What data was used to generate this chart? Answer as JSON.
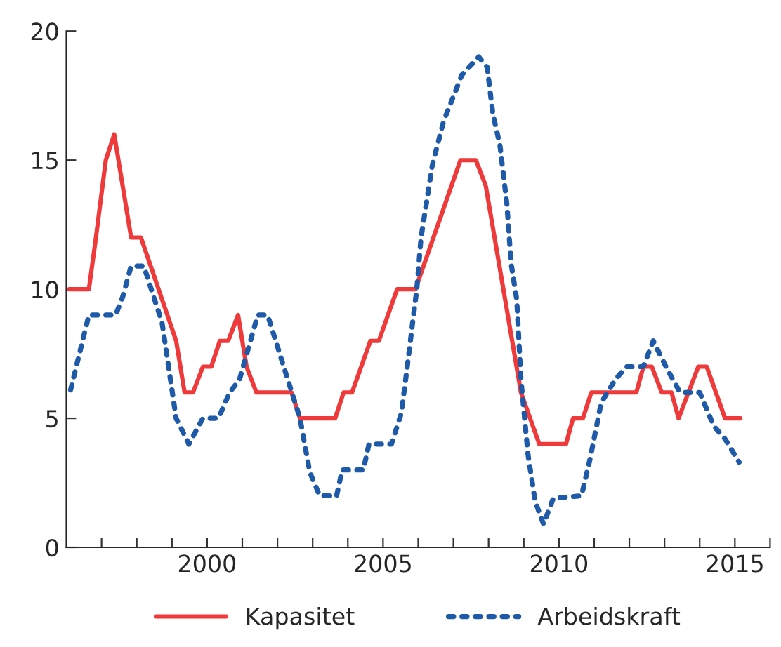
{
  "chart_data": {
    "type": "line",
    "series": [
      {
        "name": "Kapasitet",
        "color": "#ee3a3a",
        "line_style": "solid",
        "x": [
          1996.08,
          1996.64,
          1996.84,
          1997.12,
          1997.36,
          1997.84,
          1998.12,
          1999.12,
          1999.36,
          1999.6,
          1999.88,
          2000.12,
          2000.36,
          2000.6,
          2000.88,
          2001.12,
          2001.4,
          2002.4,
          2002.64,
          2003.64,
          2003.88,
          2004.12,
          2004.64,
          2004.88,
          2005.4,
          2005.92,
          2007.2,
          2007.64,
          2007.92,
          2008.92,
          2009.44,
          2010.2,
          2010.4,
          2010.68,
          2010.92,
          2012.2,
          2012.4,
          2012.64,
          2012.92,
          2013.2,
          2013.4,
          2013.96,
          2014.2,
          2014.72,
          2015.16
        ],
        "values": [
          10,
          10,
          12,
          15,
          16,
          12,
          12,
          8,
          6,
          6,
          7,
          7,
          8,
          8,
          9,
          7,
          6,
          6,
          5,
          5,
          6,
          6,
          8,
          8,
          10,
          10,
          15,
          15,
          14,
          6,
          4,
          4,
          5,
          5,
          6,
          6,
          7,
          7,
          6,
          6,
          5,
          7,
          7,
          5,
          5
        ]
      },
      {
        "name": "Arbeidskraft",
        "color": "#1f5aa8",
        "line_style": "dotted",
        "x": [
          1996.12,
          1996.64,
          1997.4,
          1997.6,
          1997.84,
          1998.2,
          1998.72,
          1999.12,
          1999.48,
          1999.88,
          2000.32,
          2000.64,
          2000.92,
          2001.44,
          2001.72,
          2002.2,
          2002.64,
          2002.92,
          2003.2,
          2003.68,
          2003.84,
          2004.44,
          2004.6,
          2005.24,
          2005.52,
          2005.68,
          2005.84,
          2005.96,
          2006.08,
          2006.4,
          2006.72,
          2007.24,
          2007.72,
          2007.96,
          2008.12,
          2008.32,
          2008.52,
          2008.64,
          2008.8,
          2008.92,
          2009.12,
          2009.32,
          2009.56,
          2009.84,
          2010.64,
          2010.88,
          2011.2,
          2011.6,
          2011.92,
          2012.4,
          2012.68,
          2013.04,
          2013.44,
          2014.0,
          2014.4,
          2014.72,
          2015.12
        ],
        "values": [
          6.1,
          9,
          9,
          9.7,
          10.9,
          10.9,
          8.7,
          5,
          4,
          5,
          5,
          6,
          6.5,
          9,
          9,
          6.9,
          5,
          2.9,
          2,
          2,
          3,
          3,
          4,
          4,
          5.2,
          6.9,
          8.7,
          10,
          12,
          14.8,
          16.5,
          18.3,
          19,
          18.6,
          16.8,
          15.6,
          13.3,
          11,
          9.6,
          6.5,
          3.6,
          1.8,
          0.9,
          1.9,
          2,
          3.4,
          5.6,
          6.5,
          7,
          7,
          8,
          7,
          6,
          6,
          4.7,
          4.2,
          3.3
        ]
      }
    ],
    "xlim": [
      1996,
      2016
    ],
    "xticks": [
      {
        "value": 1997,
        "label": null
      },
      {
        "value": 1998,
        "label": null
      },
      {
        "value": 1999,
        "label": null
      },
      2000,
      {
        "value": 2001,
        "label": null
      },
      {
        "value": 2002,
        "label": null
      },
      {
        "value": 2003,
        "label": null
      },
      {
        "value": 2004,
        "label": null
      },
      2005,
      {
        "value": 2006,
        "label": null
      },
      {
        "value": 2007,
        "label": null
      },
      {
        "value": 2008,
        "label": null
      },
      {
        "value": 2009,
        "label": null
      },
      2010,
      {
        "value": 2011,
        "label": null
      },
      {
        "value": 2012,
        "label": null
      },
      {
        "value": 2013,
        "label": null
      },
      {
        "value": 2014,
        "label": null
      },
      2015,
      {
        "value": 2016,
        "label": null
      }
    ],
    "ylim": [
      0,
      20
    ],
    "yticks": [
      0,
      5,
      10,
      15,
      20
    ],
    "grid": false,
    "legend": "bottom",
    "marker": "none"
  }
}
